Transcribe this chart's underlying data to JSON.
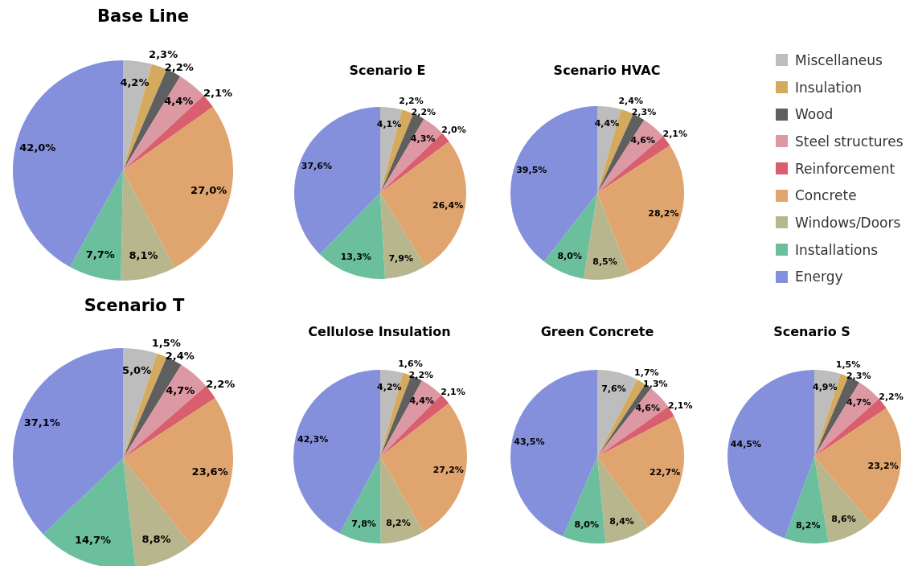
{
  "chart_data": [
    {
      "type": "pie",
      "title": "Base Line",
      "categories": [
        null,
        null,
        null,
        null,
        null,
        null,
        null,
        null,
        null
      ],
      "colors": [
        "#bdbdbd",
        "#d4aa5e",
        "#5f5f5f",
        "#dc98a3",
        "#d95f6e",
        "#e0a46e",
        "#b8b68c",
        "#6cbf9c",
        "#8490dc"
      ],
      "values": [
        4.2,
        2.3,
        2.2,
        4.4,
        2.1,
        27.0,
        8.1,
        7.7,
        42.0
      ],
      "value_labels": [
        "4,2%",
        "2,3%",
        "2,2%",
        "4,4%",
        "2,1%",
        "27,0%",
        "8,1%",
        "7,7%",
        "42,0%"
      ]
    },
    {
      "type": "pie",
      "title": "Scenario E",
      "categories": [
        null,
        null,
        null,
        null,
        null,
        null,
        null,
        null,
        null
      ],
      "colors": [
        "#bdbdbd",
        "#d4aa5e",
        "#5f5f5f",
        "#dc98a3",
        "#d95f6e",
        "#e0a46e",
        "#b8b68c",
        "#6cbf9c",
        "#8490dc"
      ],
      "values": [
        4.1,
        2.2,
        2.2,
        4.3,
        2.0,
        26.4,
        7.9,
        13.3,
        37.6
      ],
      "value_labels": [
        "4,1%",
        "2,2%",
        "2,2%",
        "4,3%",
        "2,0%",
        "26,4%",
        "7,9%",
        "13,3%",
        "37,6%"
      ]
    },
    {
      "type": "pie",
      "title": "Scenario HVAC",
      "legend": "right",
      "categories": [
        "Miscellaneus",
        "Insulation",
        "Wood",
        "Steel structures",
        "Reinforcement",
        "Concrete",
        "Windows/Doors",
        "Installations",
        "Energy"
      ],
      "colors": [
        "#bdbdbd",
        "#d4aa5e",
        "#5f5f5f",
        "#dc98a3",
        "#d95f6e",
        "#e0a46e",
        "#b8b68c",
        "#6cbf9c",
        "#8490dc"
      ],
      "values": [
        4.4,
        2.4,
        2.3,
        4.6,
        2.1,
        28.2,
        8.5,
        8.0,
        39.5
      ],
      "value_labels": [
        "4,4%",
        "2,4%",
        "2,3%",
        "4,6%",
        "2,1%",
        "28,2%",
        "8,5%",
        "8,0%",
        "39,5%"
      ]
    },
    {
      "type": "pie",
      "title": "Scenario T",
      "categories": [
        null,
        null,
        null,
        null,
        null,
        null,
        null,
        null,
        null
      ],
      "colors": [
        "#bdbdbd",
        "#d4aa5e",
        "#5f5f5f",
        "#dc98a3",
        "#d95f6e",
        "#e0a46e",
        "#b8b68c",
        "#6cbf9c",
        "#8490dc"
      ],
      "values": [
        5.0,
        1.5,
        2.4,
        4.7,
        2.2,
        23.6,
        8.8,
        14.7,
        37.1
      ],
      "value_labels": [
        "5,0%",
        "1,5%",
        "2,4%",
        "4,7%",
        "2,2%",
        "23,6%",
        "8,8%",
        "14,7%",
        "37,1%"
      ]
    },
    {
      "type": "pie",
      "title": "Cellulose Insulation",
      "categories": [
        null,
        null,
        null,
        null,
        null,
        null,
        null,
        null,
        null
      ],
      "colors": [
        "#bdbdbd",
        "#d4aa5e",
        "#5f5f5f",
        "#dc98a3",
        "#d95f6e",
        "#e0a46e",
        "#b8b68c",
        "#6cbf9c",
        "#8490dc"
      ],
      "values": [
        4.2,
        1.6,
        2.2,
        4.4,
        2.1,
        27.2,
        8.2,
        7.8,
        42.3
      ],
      "value_labels": [
        "4,2%",
        "1,6%",
        "2,2%",
        "4,4%",
        "2,1%",
        "27,2%",
        "8,2%",
        "7,8%",
        "42,3%"
      ]
    },
    {
      "type": "pie",
      "title": "Green Concrete",
      "categories": [
        null,
        null,
        null,
        null,
        null,
        null,
        null,
        null,
        null
      ],
      "colors": [
        "#bdbdbd",
        "#d4aa5e",
        "#5f5f5f",
        "#dc98a3",
        "#d95f6e",
        "#e0a46e",
        "#b8b68c",
        "#6cbf9c",
        "#8490dc"
      ],
      "values": [
        7.6,
        1.7,
        1.3,
        4.6,
        2.1,
        22.7,
        8.4,
        8.0,
        43.5
      ],
      "value_labels": [
        "7,6%",
        "1,7%",
        "1,3%",
        "4,6%",
        "2,1%",
        "22,7%",
        "8,4%",
        "8,0%",
        "43,5%"
      ]
    },
    {
      "type": "pie",
      "title": "Scenario S",
      "categories": [
        null,
        null,
        null,
        null,
        null,
        null,
        null,
        null,
        null
      ],
      "colors": [
        "#bdbdbd",
        "#d4aa5e",
        "#5f5f5f",
        "#dc98a3",
        "#d95f6e",
        "#e0a46e",
        "#b8b68c",
        "#6cbf9c",
        "#8490dc"
      ],
      "values": [
        4.9,
        1.5,
        2.3,
        4.7,
        2.2,
        23.2,
        8.6,
        8.2,
        44.5
      ],
      "value_labels": [
        "4,9%",
        "1,5%",
        "2,3%",
        "4,7%",
        "2,2%",
        "23,2%",
        "8,6%",
        "8,2%",
        "44,5%"
      ]
    }
  ]
}
